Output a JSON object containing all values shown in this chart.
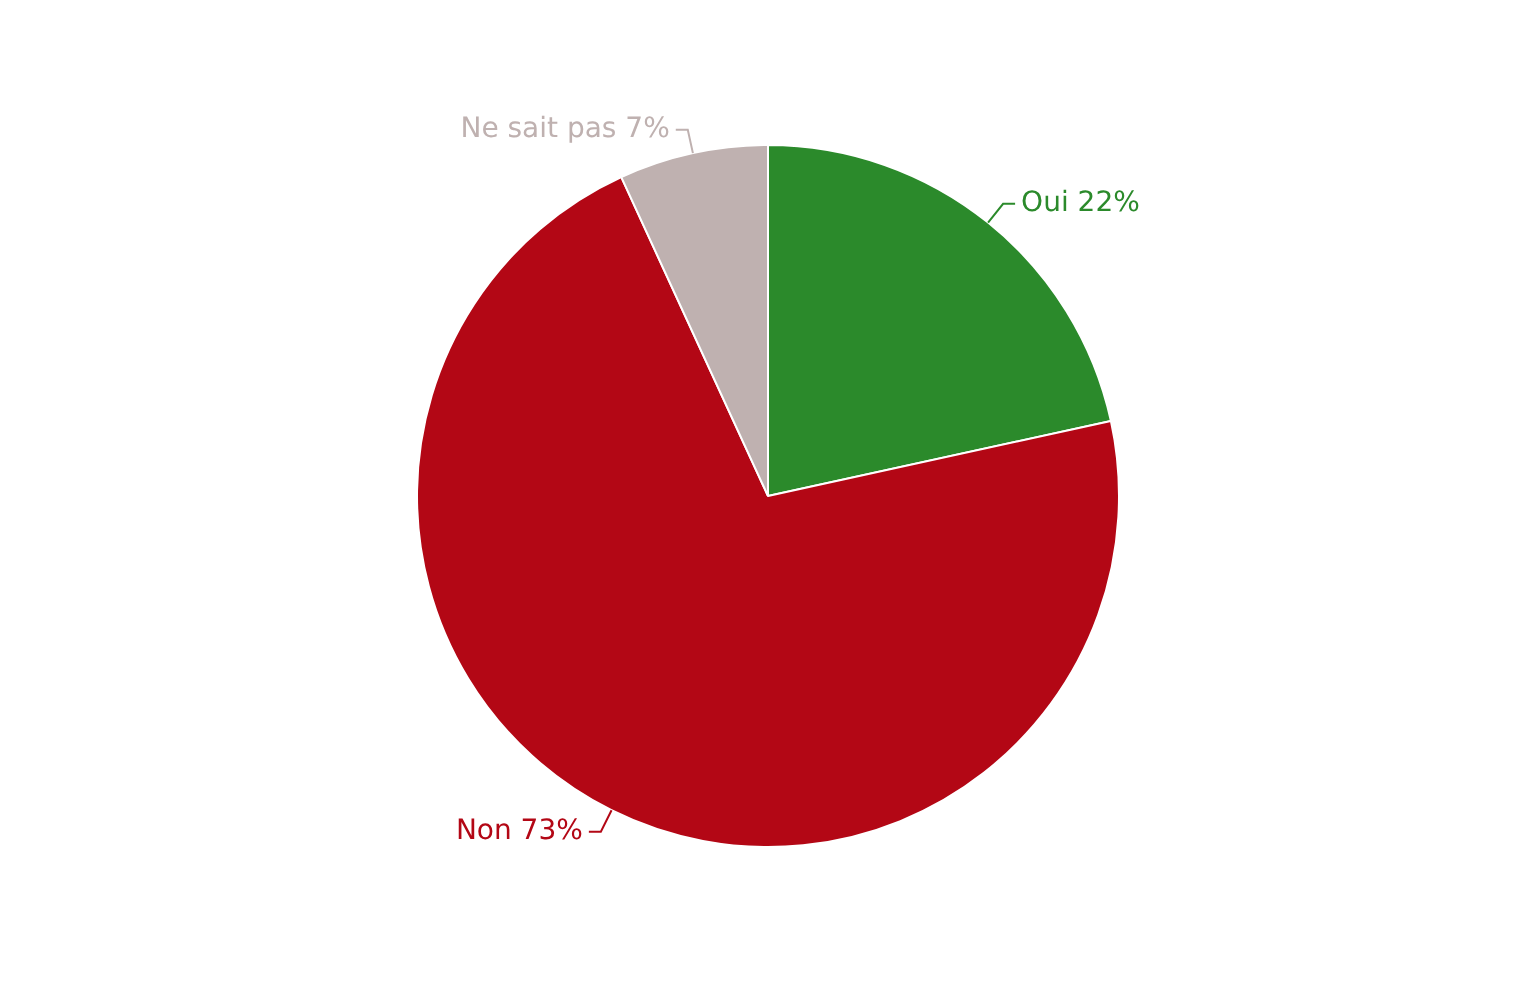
{
  "chart_data": {
    "type": "pie",
    "categories": [
      "Oui",
      "Non",
      "Ne sait pas"
    ],
    "values": [
      22,
      73,
      7
    ],
    "colors": [
      "#2b8a2b",
      "#b30715",
      "#bfb1b0"
    ],
    "value_labels": [
      "22%",
      "73%",
      "7%"
    ]
  }
}
